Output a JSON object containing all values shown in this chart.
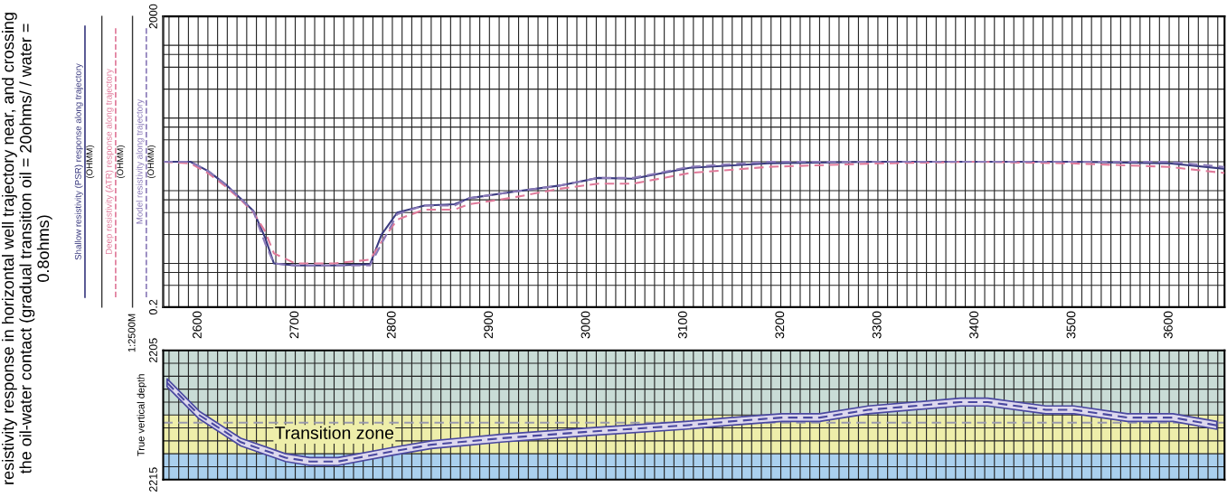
{
  "chart_data": [
    {
      "type": "line",
      "title": "resistivity response in horizontal well trajectory near, and crossing the oil-water contact (gradual transition oil = 20ohms/ / water = 0.8ohms)",
      "ylabel": "(OHMM)",
      "log": "y",
      "legend": "left",
      "grid": true,
      "annotations": [
        "1:2500M"
      ],
      "xlim": [
        2564,
        3657
      ],
      "xticks": [
        {
          "value": 2570,
          "label": null
        },
        {
          "value": 2580,
          "label": null
        },
        {
          "value": 2590,
          "label": null
        },
        2600,
        {
          "value": 2610,
          "label": null
        },
        {
          "value": 2620,
          "label": null
        },
        {
          "value": 2630,
          "label": null
        },
        {
          "value": 2640,
          "label": null
        },
        {
          "value": 2650,
          "label": null
        },
        {
          "value": 2660,
          "label": null
        },
        {
          "value": 2670,
          "label": null
        },
        {
          "value": 2680,
          "label": null
        },
        {
          "value": 2690,
          "label": null
        },
        2700,
        {
          "value": 2710,
          "label": null
        },
        {
          "value": 2720,
          "label": null
        },
        {
          "value": 2730,
          "label": null
        },
        {
          "value": 2740,
          "label": null
        },
        {
          "value": 2750,
          "label": null
        },
        {
          "value": 2760,
          "label": null
        },
        {
          "value": 2770,
          "label": null
        },
        {
          "value": 2780,
          "label": null
        },
        {
          "value": 2790,
          "label": null
        },
        2800,
        {
          "value": 2810,
          "label": null
        },
        {
          "value": 2820,
          "label": null
        },
        {
          "value": 2830,
          "label": null
        },
        {
          "value": 2840,
          "label": null
        },
        {
          "value": 2850,
          "label": null
        },
        {
          "value": 2860,
          "label": null
        },
        {
          "value": 2870,
          "label": null
        },
        {
          "value": 2880,
          "label": null
        },
        {
          "value": 2890,
          "label": null
        },
        2900,
        {
          "value": 2910,
          "label": null
        },
        {
          "value": 2920,
          "label": null
        },
        {
          "value": 2930,
          "label": null
        },
        {
          "value": 2940,
          "label": null
        },
        {
          "value": 2950,
          "label": null
        },
        {
          "value": 2960,
          "label": null
        },
        {
          "value": 2970,
          "label": null
        },
        {
          "value": 2980,
          "label": null
        },
        {
          "value": 2990,
          "label": null
        },
        3000,
        {
          "value": 3010,
          "label": null
        },
        {
          "value": 3020,
          "label": null
        },
        {
          "value": 3030,
          "label": null
        },
        {
          "value": 3040,
          "label": null
        },
        {
          "value": 3050,
          "label": null
        },
        {
          "value": 3060,
          "label": null
        },
        {
          "value": 3070,
          "label": null
        },
        {
          "value": 3080,
          "label": null
        },
        {
          "value": 3090,
          "label": null
        },
        3100,
        {
          "value": 3110,
          "label": null
        },
        {
          "value": 3120,
          "label": null
        },
        {
          "value": 3130,
          "label": null
        },
        {
          "value": 3140,
          "label": null
        },
        {
          "value": 3150,
          "label": null
        },
        {
          "value": 3160,
          "label": null
        },
        {
          "value": 3170,
          "label": null
        },
        {
          "value": 3180,
          "label": null
        },
        {
          "value": 3190,
          "label": null
        },
        3200,
        {
          "value": 3210,
          "label": null
        },
        {
          "value": 3220,
          "label": null
        },
        {
          "value": 3230,
          "label": null
        },
        {
          "value": 3240,
          "label": null
        },
        {
          "value": 3250,
          "label": null
        },
        {
          "value": 3260,
          "label": null
        },
        {
          "value": 3270,
          "label": null
        },
        {
          "value": 3280,
          "label": null
        },
        {
          "value": 3290,
          "label": null
        },
        3300,
        {
          "value": 3310,
          "label": null
        },
        {
          "value": 3320,
          "label": null
        },
        {
          "value": 3330,
          "label": null
        },
        {
          "value": 3340,
          "label": null
        },
        {
          "value": 3350,
          "label": null
        },
        {
          "value": 3360,
          "label": null
        },
        {
          "value": 3370,
          "label": null
        },
        {
          "value": 3380,
          "label": null
        },
        {
          "value": 3390,
          "label": null
        },
        3400,
        {
          "value": 3410,
          "label": null
        },
        {
          "value": 3420,
          "label": null
        },
        {
          "value": 3430,
          "label": null
        },
        {
          "value": 3440,
          "label": null
        },
        {
          "value": 3450,
          "label": null
        },
        {
          "value": 3460,
          "label": null
        },
        {
          "value": 3470,
          "label": null
        },
        {
          "value": 3480,
          "label": null
        },
        {
          "value": 3490,
          "label": null
        },
        3500,
        {
          "value": 3510,
          "label": null
        },
        {
          "value": 3520,
          "label": null
        },
        {
          "value": 3530,
          "label": null
        },
        {
          "value": 3540,
          "label": null
        },
        {
          "value": 3550,
          "label": null
        },
        {
          "value": 3560,
          "label": null
        },
        {
          "value": 3570,
          "label": null
        },
        {
          "value": 3580,
          "label": null
        },
        {
          "value": 3590,
          "label": null
        },
        3600,
        {
          "value": 3610,
          "label": null
        },
        {
          "value": 3620,
          "label": null
        },
        {
          "value": 3630,
          "label": null
        },
        {
          "value": 3640,
          "label": null
        },
        {
          "value": 3650,
          "label": null
        }
      ],
      "ylim": [
        0.2,
        2000
      ],
      "yticks": [
        0.2,
        {
          "value": 0.4,
          "label": null
        },
        {
          "value": 0.6,
          "label": null
        },
        {
          "value": 0.8,
          "label": null
        },
        {
          "value": 2,
          "label": null
        },
        {
          "value": 4,
          "label": null
        },
        {
          "value": 6,
          "label": null
        },
        {
          "value": 8,
          "label": null
        },
        {
          "value": 20,
          "label": null
        },
        {
          "value": 40,
          "label": null
        },
        {
          "value": 60,
          "label": null
        },
        {
          "value": 80,
          "label": null
        },
        {
          "value": 200,
          "label": null
        },
        {
          "value": 400,
          "label": null
        },
        {
          "value": 600,
          "label": null
        },
        {
          "value": 800,
          "label": null
        },
        2000
      ],
      "x": [
        2564,
        2592,
        2610,
        2629,
        2645,
        2657,
        2669,
        2678,
        2700,
        2740,
        2777,
        2789,
        2805,
        2833,
        2864,
        2879,
        2926,
        2972,
        3012,
        3048,
        3106,
        3187,
        3300,
        3400,
        3500,
        3600,
        3657
      ],
      "series": [
        {
          "name": "Shallow resistivity (PSR) response along trajectory",
          "color": "#3b3b80",
          "line_style": "solid",
          "values": [
            20,
            20,
            15,
            9.6,
            6,
            4.2,
            1.8,
            0.8,
            0.75,
            0.75,
            0.78,
            2.0,
            4.0,
            5.0,
            5.2,
            6.3,
            7.8,
            9.4,
            12,
            11.7,
            16.5,
            19,
            20,
            20,
            20,
            19,
            16
          ]
        },
        {
          "name": "Deep resistivity (ATR) response along trajectory",
          "color": "#e07a9a",
          "line_style": "dashed",
          "values": [
            20,
            19,
            14,
            9,
            5.8,
            4.0,
            2.2,
            1.1,
            0.8,
            0.8,
            0.9,
            1.6,
            3.2,
            4.4,
            4.4,
            5.2,
            6.5,
            8.5,
            10,
            10,
            14,
            17,
            19,
            20,
            19,
            17,
            14
          ]
        },
        {
          "name": "Model resistivity along trajectory",
          "color": "#8a7ab8",
          "line_style": "dashed",
          "values": [
            20,
            20,
            15,
            9.5,
            6,
            4.1,
            1.5,
            0.8,
            0.75,
            0.75,
            0.75,
            1.5,
            3.8,
            5.0,
            5.0,
            6.3,
            7.8,
            9.4,
            12,
            12,
            17,
            20,
            20,
            20,
            20,
            20,
            17
          ]
        }
      ]
    },
    {
      "type": "line",
      "ylabel": "True vertical depth",
      "grid": true,
      "tick_labels": "y",
      "xlim": [
        2564,
        3657
      ],
      "ylim": [
        2215,
        2205
      ],
      "yticks": [
        2205,
        {
          "value": 2206,
          "label": null
        },
        {
          "value": 2207,
          "label": null
        },
        {
          "value": 2208,
          "label": null
        },
        {
          "value": 2209,
          "label": null
        },
        {
          "value": 2210,
          "label": null
        },
        {
          "value": 2211,
          "label": null
        },
        {
          "value": 2212,
          "label": null
        },
        {
          "value": 2213,
          "label": null
        },
        {
          "value": 2214,
          "label": null
        },
        2215
      ],
      "bands": [
        {
          "axis": "y",
          "from": 2205,
          "to": 2210,
          "label": null,
          "color": "#c9dcd6"
        },
        {
          "axis": "y",
          "from": 2210,
          "to": 2213,
          "label": "Transition zone",
          "color": "#eeeeaa"
        },
        {
          "axis": "y",
          "from": 2213,
          "to": 2215,
          "label": null,
          "color": "#aad0ee"
        }
      ],
      "ref_lines": [
        {
          "axis": "y",
          "value": 2210.6,
          "label": null,
          "color": "#9a9aae",
          "line_style": "dashed"
        }
      ],
      "x": [
        2568,
        2601,
        2644,
        2690,
        2715,
        2744,
        2801,
        2840,
        2912,
        3001,
        3102,
        3148,
        3201,
        3240,
        3290,
        3385,
        3413,
        3473,
        3502,
        3557,
        3604,
        3649
      ],
      "series": [
        {
          "color": "#4a48a0",
          "line_style": "dashed",
          "values": [
            2207.5,
            2210.0,
            2212.1,
            2213.3,
            2213.6,
            2213.6,
            2212.8,
            2212.3,
            2211.8,
            2211.3,
            2210.8,
            2210.5,
            2210.2,
            2210.2,
            2209.6,
            2209.0,
            2209.0,
            2209.6,
            2209.6,
            2210.2,
            2210.2,
            2210.8
          ],
          "lower": [
            2207.2,
            2209.7,
            2211.8,
            2213.0,
            2213.3,
            2213.3,
            2212.5,
            2212.0,
            2211.5,
            2211.0,
            2210.5,
            2210.2,
            2209.9,
            2209.9,
            2209.3,
            2208.7,
            2208.7,
            2209.3,
            2209.3,
            2209.9,
            2209.9,
            2210.5
          ],
          "upper": [
            2207.8,
            2210.3,
            2212.4,
            2213.6,
            2213.9,
            2213.9,
            2213.1,
            2212.6,
            2212.1,
            2211.6,
            2211.1,
            2210.8,
            2210.5,
            2210.5,
            2209.9,
            2209.3,
            2209.3,
            2209.9,
            2209.9,
            2210.5,
            2210.5,
            2211.1
          ]
        }
      ]
    }
  ]
}
